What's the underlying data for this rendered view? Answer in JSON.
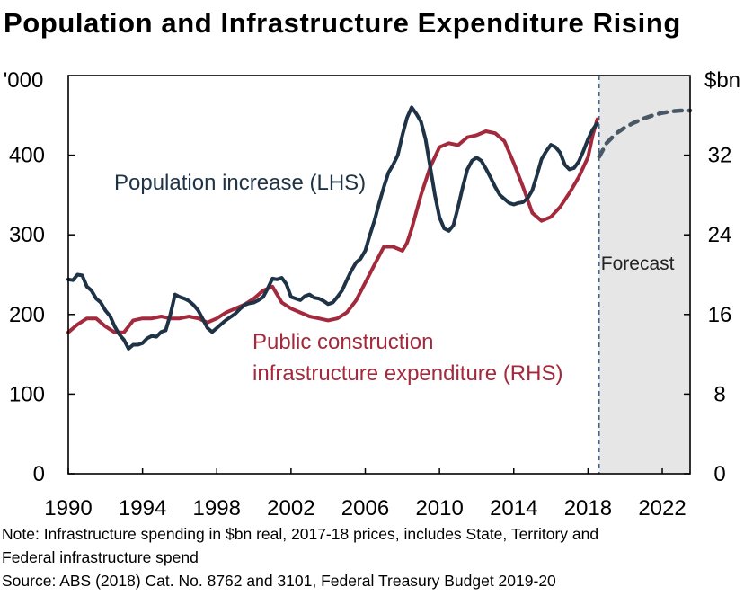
{
  "chart_data": {
    "type": "line",
    "title": "Population and Infrastructure Expenditure Rising",
    "left_axis_unit": "'000",
    "right_axis_unit": "$bn",
    "left_ylim": [
      0,
      500
    ],
    "left_ticks": [
      "0",
      "100",
      "200",
      "300",
      "400"
    ],
    "right_ylim": [
      0,
      40
    ],
    "right_ticks": [
      "0",
      "8",
      "16",
      "24",
      "32"
    ],
    "xlim": [
      1990,
      2023.5
    ],
    "x_ticks": [
      "1990",
      "1994",
      "1998",
      "2002",
      "2006",
      "2010",
      "2014",
      "2018",
      "2022"
    ],
    "forecast_start": 2018.6,
    "forecast_label": "Forecast",
    "grid": false,
    "colors": {
      "population": "#1f3347",
      "infrastructure": "#a32a3c",
      "forecast_shade": "#e6e6e6",
      "forecast_line": "#2f5a88"
    },
    "series": [
      {
        "name": "Population increase (LHS)",
        "axis": "left",
        "x": [
          1990.0,
          1990.25,
          1990.5,
          1990.75,
          1991.0,
          1991.25,
          1991.5,
          1991.75,
          1992.0,
          1992.25,
          1992.5,
          1992.75,
          1993.0,
          1993.25,
          1993.5,
          1993.75,
          1994.0,
          1994.25,
          1994.5,
          1994.75,
          1995.0,
          1995.25,
          1995.5,
          1995.75,
          1996.0,
          1996.25,
          1996.5,
          1996.75,
          1997.0,
          1997.25,
          1997.5,
          1997.75,
          1998.0,
          1998.25,
          1998.5,
          1998.75,
          1999.0,
          1999.25,
          1999.5,
          1999.75,
          2000.0,
          2000.25,
          2000.5,
          2000.75,
          2001.0,
          2001.25,
          2001.5,
          2001.75,
          2002.0,
          2002.25,
          2002.5,
          2002.75,
          2003.0,
          2003.25,
          2003.5,
          2003.75,
          2004.0,
          2004.25,
          2004.5,
          2004.75,
          2005.0,
          2005.25,
          2005.5,
          2005.75,
          2006.0,
          2006.25,
          2006.5,
          2006.75,
          2007.0,
          2007.25,
          2007.5,
          2007.75,
          2008.0,
          2008.25,
          2008.5,
          2008.75,
          2009.0,
          2009.25,
          2009.5,
          2009.75,
          2010.0,
          2010.25,
          2010.5,
          2010.75,
          2011.0,
          2011.25,
          2011.5,
          2011.75,
          2012.0,
          2012.25,
          2012.5,
          2012.75,
          2013.0,
          2013.25,
          2013.5,
          2013.75,
          2014.0,
          2014.25,
          2014.5,
          2014.75,
          2015.0,
          2015.25,
          2015.5,
          2015.75,
          2016.0,
          2016.25,
          2016.5,
          2016.75,
          2017.0,
          2017.25,
          2017.5,
          2017.75,
          2018.0,
          2018.25,
          2018.5
        ],
        "values": [
          244,
          243,
          250,
          249,
          235,
          230,
          220,
          215,
          205,
          198,
          185,
          175,
          168,
          157,
          162,
          162,
          164,
          170,
          173,
          172,
          178,
          180,
          200,
          225,
          222,
          220,
          217,
          212,
          205,
          194,
          183,
          178,
          183,
          188,
          193,
          197,
          201,
          207,
          212,
          214,
          215,
          218,
          222,
          233,
          245,
          244,
          246,
          238,
          222,
          220,
          218,
          223,
          225,
          221,
          220,
          217,
          213,
          215,
          222,
          230,
          243,
          255,
          265,
          270,
          280,
          300,
          318,
          340,
          360,
          378,
          388,
          400,
          425,
          447,
          460,
          452,
          442,
          420,
          385,
          350,
          322,
          308,
          305,
          312,
          335,
          360,
          382,
          393,
          397,
          393,
          383,
          372,
          360,
          350,
          345,
          340,
          338,
          340,
          341,
          346,
          356,
          375,
          395,
          405,
          413,
          410,
          403,
          388,
          382,
          384,
          392,
          405,
          420,
          432,
          440
        ]
      },
      {
        "name": "Public construction infrastructure expenditure (RHS)",
        "axis": "right",
        "x": [
          1990.0,
          1990.5,
          1991.0,
          1991.5,
          1992.0,
          1992.5,
          1993.0,
          1993.5,
          1994.0,
          1994.5,
          1995.0,
          1995.5,
          1996.0,
          1996.5,
          1997.0,
          1997.5,
          1998.0,
          1998.5,
          1999.0,
          1999.5,
          2000.0,
          2000.5,
          2001.0,
          2001.5,
          2002.0,
          2002.5,
          2003.0,
          2003.5,
          2004.0,
          2004.5,
          2005.0,
          2005.5,
          2006.0,
          2006.5,
          2007.0,
          2007.5,
          2008.0,
          2008.25,
          2008.5,
          2009.0,
          2009.5,
          2010.0,
          2010.5,
          2011.0,
          2011.5,
          2012.0,
          2012.5,
          2013.0,
          2013.5,
          2014.0,
          2014.5,
          2015.0,
          2015.5,
          2016.0,
          2016.5,
          2017.0,
          2017.5,
          2018.0,
          2018.25,
          2018.5
        ],
        "values": [
          14.2,
          15.0,
          15.6,
          15.6,
          14.8,
          14.2,
          14.2,
          15.4,
          15.6,
          15.6,
          15.8,
          15.6,
          15.6,
          15.8,
          15.6,
          15.2,
          15.6,
          16.2,
          16.6,
          17.0,
          17.6,
          18.4,
          18.8,
          17.2,
          16.6,
          16.2,
          15.8,
          15.6,
          15.4,
          15.6,
          16.2,
          17.4,
          19.2,
          21.0,
          22.8,
          22.8,
          22.4,
          23.2,
          24.6,
          28.0,
          30.8,
          32.8,
          33.2,
          33.0,
          33.8,
          34.0,
          34.4,
          34.2,
          33.4,
          31.2,
          28.8,
          26.2,
          25.4,
          25.8,
          26.8,
          28.2,
          29.8,
          31.8,
          34.0,
          35.6
        ]
      },
      {
        "name": "Forecast",
        "axis": "left",
        "style": "dashed",
        "x": [
          2018.6,
          2019.0,
          2019.5,
          2020.0,
          2020.5,
          2021.0,
          2021.5,
          2022.0,
          2022.5,
          2023.0,
          2023.5
        ],
        "values": [
          398,
          415,
          427,
          435,
          441,
          446,
          450,
          453,
          455,
          456,
          456
        ]
      }
    ],
    "annotations": [
      {
        "text": "Population increase (LHS)",
        "series": 0
      },
      {
        "lines": [
          "Public construction",
          "infrastructure expenditure (RHS)"
        ],
        "series": 1
      }
    ]
  },
  "notes": {
    "line1": "Note:  Infrastructure spending in $bn real, 2017-18 prices, includes State, Territory and",
    "line2": "Federal infrastructure spend",
    "line3": "Source: ABS (2018) Cat. No. 8762 and 3101, Federal Treasury Budget 2019-20"
  }
}
